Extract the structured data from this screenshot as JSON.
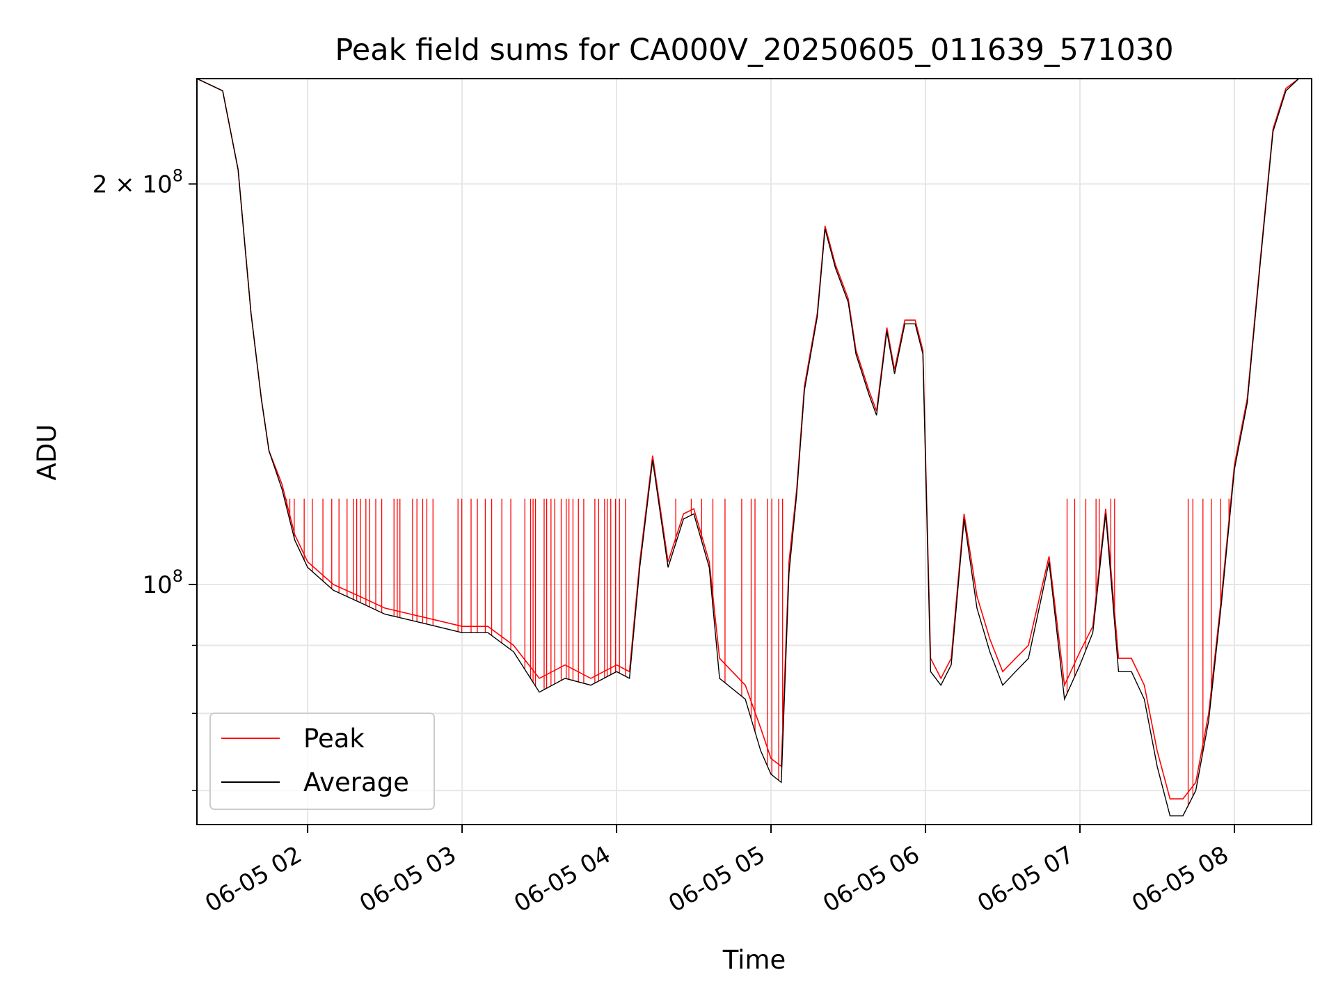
{
  "chart_data": {
    "type": "line",
    "title": "Peak field sums for CA000V_20250605_011639_571030",
    "xlabel": "Time",
    "ylabel": "ADU",
    "yscale": "log",
    "grid": true,
    "legend_placement": "lower-left",
    "xlim": [
      "2025-06-05 01:17",
      "2025-06-05 08:30"
    ],
    "ylim": [
      66000000,
      240000000
    ],
    "x_ticks": [
      {
        "value": "2025-06-05 02:00",
        "label": "06-05 02"
      },
      {
        "value": "2025-06-05 03:00",
        "label": "06-05 03"
      },
      {
        "value": "2025-06-05 04:00",
        "label": "06-05 04"
      },
      {
        "value": "2025-06-05 05:00",
        "label": "06-05 05"
      },
      {
        "value": "2025-06-05 06:00",
        "label": "06-05 06"
      },
      {
        "value": "2025-06-05 07:00",
        "label": "06-05 07"
      },
      {
        "value": "2025-06-05 08:00",
        "label": "06-05 08"
      }
    ],
    "y_major_ticks": [
      {
        "value": 100000000,
        "base": "10",
        "exp": "8"
      },
      {
        "value": 200000000,
        "base": "2 × 10",
        "exp": "8"
      }
    ],
    "y_minor_ticks": [
      70000000,
      80000000,
      90000000
    ],
    "peak_level": 116000000,
    "series": [
      {
        "name": "Peak",
        "color": "#ff0000",
        "x": [
          "2025-06-05 01:17",
          "2025-06-05 01:27",
          "2025-06-05 01:33",
          "2025-06-05 01:38",
          "2025-06-05 01:42",
          "2025-06-05 01:45",
          "2025-06-05 01:50",
          "2025-06-05 01:55",
          "2025-06-05 02:00",
          "2025-06-05 02:10",
          "2025-06-05 02:20",
          "2025-06-05 02:30",
          "2025-06-05 02:40",
          "2025-06-05 02:50",
          "2025-06-05 03:00",
          "2025-06-05 03:10",
          "2025-06-05 03:20",
          "2025-06-05 03:30",
          "2025-06-05 03:40",
          "2025-06-05 03:50",
          "2025-06-05 04:00",
          "2025-06-05 04:05",
          "2025-06-05 04:09",
          "2025-06-05 04:14",
          "2025-06-05 04:20",
          "2025-06-05 04:26",
          "2025-06-05 04:30",
          "2025-06-05 04:36",
          "2025-06-05 04:40",
          "2025-06-05 04:50",
          "2025-06-05 04:56",
          "2025-06-05 05:00",
          "2025-06-05 05:04",
          "2025-06-05 05:07",
          "2025-06-05 05:10",
          "2025-06-05 05:13",
          "2025-06-05 05:18",
          "2025-06-05 05:21",
          "2025-06-05 05:25",
          "2025-06-05 05:30",
          "2025-06-05 05:33",
          "2025-06-05 05:38",
          "2025-06-05 05:41",
          "2025-06-05 05:45",
          "2025-06-05 05:48",
          "2025-06-05 05:52",
          "2025-06-05 05:56",
          "2025-06-05 05:59",
          "2025-06-05 06:02",
          "2025-06-05 06:06",
          "2025-06-05 06:10",
          "2025-06-05 06:15",
          "2025-06-05 06:20",
          "2025-06-05 06:25",
          "2025-06-05 06:30",
          "2025-06-05 06:35",
          "2025-06-05 06:40",
          "2025-06-05 06:48",
          "2025-06-05 06:54",
          "2025-06-05 07:00",
          "2025-06-05 07:05",
          "2025-06-05 07:10",
          "2025-06-05 07:15",
          "2025-06-05 07:20",
          "2025-06-05 07:25",
          "2025-06-05 07:30",
          "2025-06-05 07:35",
          "2025-06-05 07:40",
          "2025-06-05 07:45",
          "2025-06-05 07:50",
          "2025-06-05 07:55",
          "2025-06-05 08:00",
          "2025-06-05 08:05",
          "2025-06-05 08:10",
          "2025-06-05 08:15",
          "2025-06-05 08:20",
          "2025-06-05 08:25",
          "2025-06-05 08:30"
        ],
        "y": [
          240000000,
          235000000,
          205000000,
          160000000,
          138000000,
          126000000,
          119000000,
          109000000,
          104000000,
          100000000,
          98000000,
          96000000,
          95000000,
          94000000,
          93000000,
          93000000,
          90000000,
          85000000,
          87000000,
          85000000,
          87000000,
          86000000,
          104000000,
          125000000,
          104000000,
          113000000,
          114000000,
          104000000,
          88000000,
          84000000,
          78000000,
          74000000,
          73000000,
          104000000,
          118000000,
          141000000,
          160000000,
          186000000,
          174000000,
          164000000,
          150000000,
          140000000,
          135000000,
          156000000,
          145000000,
          158000000,
          158000000,
          150000000,
          88000000,
          85000000,
          88000000,
          113000000,
          98000000,
          91000000,
          86000000,
          88000000,
          90000000,
          105000000,
          84000000,
          89000000,
          93000000,
          114000000,
          88000000,
          88000000,
          84000000,
          75000000,
          69000000,
          69000000,
          71000000,
          80000000,
          98000000,
          123000000,
          138000000,
          175000000,
          220000000,
          236000000,
          240000000,
          240000000
        ]
      },
      {
        "name": "Average",
        "color": "#000000",
        "x": [
          "2025-06-05 01:17",
          "2025-06-05 01:27",
          "2025-06-05 01:33",
          "2025-06-05 01:38",
          "2025-06-05 01:42",
          "2025-06-05 01:45",
          "2025-06-05 01:50",
          "2025-06-05 01:55",
          "2025-06-05 02:00",
          "2025-06-05 02:10",
          "2025-06-05 02:20",
          "2025-06-05 02:30",
          "2025-06-05 02:40",
          "2025-06-05 02:50",
          "2025-06-05 03:00",
          "2025-06-05 03:10",
          "2025-06-05 03:20",
          "2025-06-05 03:30",
          "2025-06-05 03:40",
          "2025-06-05 03:50",
          "2025-06-05 04:00",
          "2025-06-05 04:05",
          "2025-06-05 04:09",
          "2025-06-05 04:14",
          "2025-06-05 04:20",
          "2025-06-05 04:26",
          "2025-06-05 04:30",
          "2025-06-05 04:36",
          "2025-06-05 04:40",
          "2025-06-05 04:50",
          "2025-06-05 04:56",
          "2025-06-05 05:00",
          "2025-06-05 05:04",
          "2025-06-05 05:07",
          "2025-06-05 05:10",
          "2025-06-05 05:13",
          "2025-06-05 05:18",
          "2025-06-05 05:21",
          "2025-06-05 05:25",
          "2025-06-05 05:30",
          "2025-06-05 05:33",
          "2025-06-05 05:38",
          "2025-06-05 05:41",
          "2025-06-05 05:45",
          "2025-06-05 05:48",
          "2025-06-05 05:52",
          "2025-06-05 05:56",
          "2025-06-05 05:59",
          "2025-06-05 06:02",
          "2025-06-05 06:06",
          "2025-06-05 06:10",
          "2025-06-05 06:15",
          "2025-06-05 06:20",
          "2025-06-05 06:25",
          "2025-06-05 06:30",
          "2025-06-05 06:35",
          "2025-06-05 06:40",
          "2025-06-05 06:48",
          "2025-06-05 06:54",
          "2025-06-05 07:00",
          "2025-06-05 07:05",
          "2025-06-05 07:10",
          "2025-06-05 07:15",
          "2025-06-05 07:20",
          "2025-06-05 07:25",
          "2025-06-05 07:30",
          "2025-06-05 07:35",
          "2025-06-05 07:40",
          "2025-06-05 07:45",
          "2025-06-05 07:50",
          "2025-06-05 07:55",
          "2025-06-05 08:00",
          "2025-06-05 08:05",
          "2025-06-05 08:10",
          "2025-06-05 08:15",
          "2025-06-05 08:20",
          "2025-06-05 08:25",
          "2025-06-05 08:30"
        ],
        "y": [
          240000000,
          235000000,
          205000000,
          160000000,
          138000000,
          126000000,
          118000000,
          108000000,
          103000000,
          99000000,
          97000000,
          95000000,
          94000000,
          93000000,
          92000000,
          92000000,
          89000000,
          83000000,
          85000000,
          84000000,
          86000000,
          85000000,
          103000000,
          124000000,
          103000000,
          112000000,
          113000000,
          103000000,
          85000000,
          82000000,
          75000000,
          72000000,
          71000000,
          102000000,
          117000000,
          140000000,
          159000000,
          185000000,
          173000000,
          163000000,
          149000000,
          139000000,
          134000000,
          155000000,
          144000000,
          157000000,
          157000000,
          149000000,
          86000000,
          84000000,
          87000000,
          112000000,
          96000000,
          89000000,
          84000000,
          86000000,
          88000000,
          104000000,
          82000000,
          87000000,
          92000000,
          113000000,
          86000000,
          86000000,
          82000000,
          73000000,
          67000000,
          67000000,
          70000000,
          79000000,
          97000000,
          122000000,
          137000000,
          174000000,
          219000000,
          235000000,
          240000000,
          240000000
        ]
      }
    ]
  }
}
